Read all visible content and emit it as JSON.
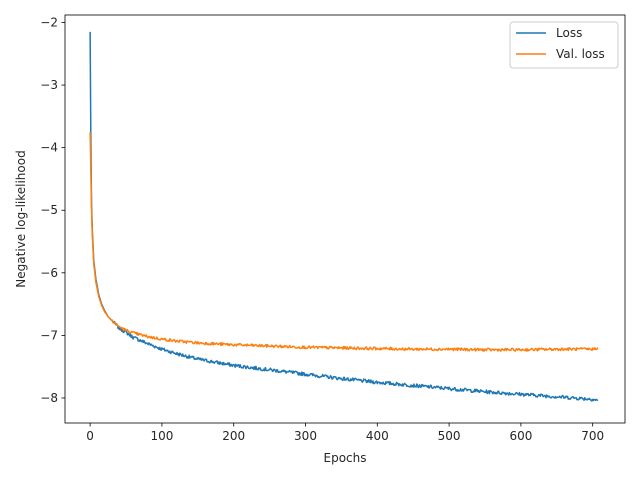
{
  "chart_data": {
    "type": "line",
    "title": "",
    "xlabel": "Epochs",
    "ylabel": "Negative log-likelihood",
    "xlim": [
      -35,
      745
    ],
    "ylim": [
      -8.4,
      -1.88
    ],
    "xticks": [
      0,
      100,
      200,
      300,
      400,
      500,
      600,
      700
    ],
    "yticks": [
      -8,
      -7,
      -6,
      -5,
      -4,
      -3,
      -2
    ],
    "ytick_labels": [
      "−8",
      "−7",
      "−6",
      "−5",
      "−4",
      "−3",
      "−2"
    ],
    "grid": false,
    "legend": "top-right",
    "series": [
      {
        "name": "Loss",
        "color": "#1f77b4",
        "x": [
          0,
          1,
          2,
          3,
          5,
          8,
          12,
          16,
          20,
          25,
          30,
          35,
          40,
          50,
          60,
          80,
          100,
          120,
          150,
          200,
          250,
          300,
          350,
          400,
          450,
          500,
          550,
          600,
          650,
          700,
          707
        ],
        "y": [
          -2.15,
          -3.9,
          -4.9,
          -5.3,
          -5.8,
          -6.1,
          -6.35,
          -6.5,
          -6.6,
          -6.7,
          -6.76,
          -6.82,
          -6.88,
          -6.95,
          -7.03,
          -7.13,
          -7.22,
          -7.29,
          -7.38,
          -7.48,
          -7.55,
          -7.62,
          -7.69,
          -7.75,
          -7.8,
          -7.85,
          -7.9,
          -7.94,
          -7.98,
          -8.02,
          -8.04
        ]
      },
      {
        "name": "Val. loss",
        "color": "#ff7f0e",
        "x": [
          0,
          1,
          2,
          3,
          5,
          8,
          12,
          16,
          20,
          25,
          30,
          35,
          40,
          50,
          60,
          80,
          100,
          120,
          150,
          200,
          250,
          300,
          350,
          400,
          450,
          500,
          550,
          600,
          650,
          700,
          707
        ],
        "y": [
          -3.75,
          -4.4,
          -5.0,
          -5.4,
          -5.85,
          -6.15,
          -6.38,
          -6.52,
          -6.62,
          -6.7,
          -6.76,
          -6.81,
          -6.86,
          -6.92,
          -6.96,
          -7.02,
          -7.06,
          -7.09,
          -7.12,
          -7.15,
          -7.17,
          -7.19,
          -7.2,
          -7.21,
          -7.22,
          -7.22,
          -7.23,
          -7.23,
          -7.22,
          -7.22,
          -7.2
        ]
      }
    ]
  }
}
